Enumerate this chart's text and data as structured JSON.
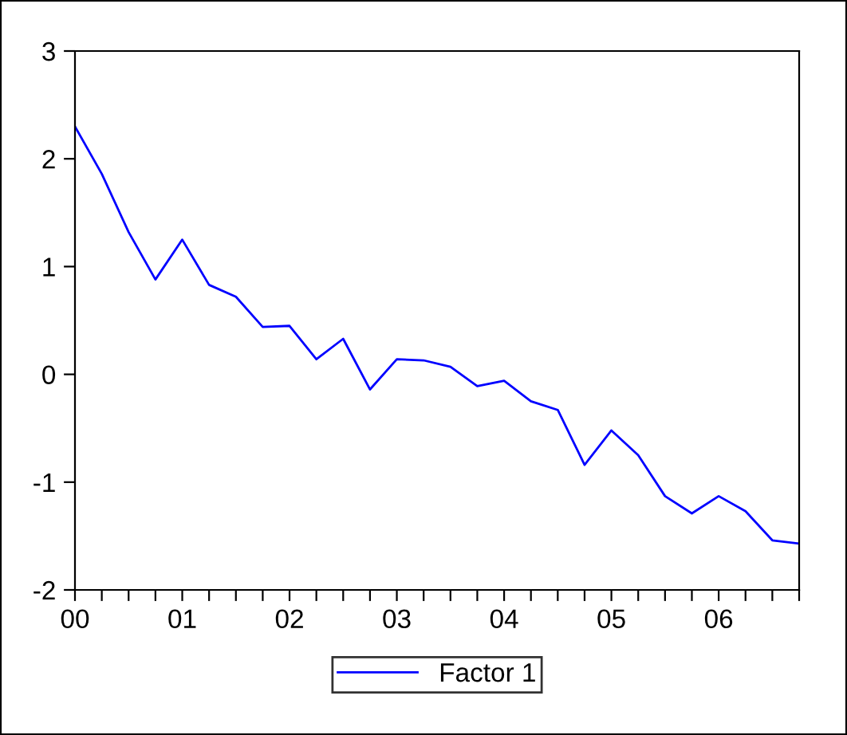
{
  "chart_data": {
    "type": "line",
    "x": [
      2000,
      2000.25,
      2000.5,
      2000.75,
      2001,
      2001.25,
      2001.5,
      2001.75,
      2002,
      2002.25,
      2002.5,
      2002.75,
      2003,
      2003.25,
      2003.5,
      2003.75,
      2004,
      2004.25,
      2004.5,
      2004.75,
      2005,
      2005.25,
      2005.5,
      2005.75,
      2006,
      2006.25,
      2006.5,
      2006.75
    ],
    "series": [
      {
        "name": "Factor 1",
        "color": "#0000ff",
        "values": [
          2.3,
          1.86,
          1.32,
          0.88,
          1.25,
          0.83,
          0.72,
          0.44,
          0.45,
          0.14,
          0.33,
          -0.14,
          0.14,
          0.13,
          0.07,
          -0.11,
          -0.06,
          -0.25,
          -0.33,
          -0.84,
          -0.52,
          -0.75,
          -1.13,
          -1.29,
          -1.13,
          -1.27,
          -1.54,
          -1.57
        ]
      }
    ],
    "xlim": [
      2000,
      2006.75
    ],
    "xticks": [
      {
        "value": 2000,
        "label": "00"
      },
      {
        "value": 2000.25,
        "label": null
      },
      {
        "value": 2000.5,
        "label": null
      },
      {
        "value": 2000.75,
        "label": null
      },
      {
        "value": 2001,
        "label": "01"
      },
      {
        "value": 2001.25,
        "label": null
      },
      {
        "value": 2001.5,
        "label": null
      },
      {
        "value": 2001.75,
        "label": null
      },
      {
        "value": 2002,
        "label": "02"
      },
      {
        "value": 2002.25,
        "label": null
      },
      {
        "value": 2002.5,
        "label": null
      },
      {
        "value": 2002.75,
        "label": null
      },
      {
        "value": 2003,
        "label": "03"
      },
      {
        "value": 2003.25,
        "label": null
      },
      {
        "value": 2003.5,
        "label": null
      },
      {
        "value": 2003.75,
        "label": null
      },
      {
        "value": 2004,
        "label": "04"
      },
      {
        "value": 2004.25,
        "label": null
      },
      {
        "value": 2004.5,
        "label": null
      },
      {
        "value": 2004.75,
        "label": null
      },
      {
        "value": 2005,
        "label": "05"
      },
      {
        "value": 2005.25,
        "label": null
      },
      {
        "value": 2005.5,
        "label": null
      },
      {
        "value": 2005.75,
        "label": null
      },
      {
        "value": 2006,
        "label": "06"
      },
      {
        "value": 2006.25,
        "label": null
      },
      {
        "value": 2006.5,
        "label": null
      },
      {
        "value": 2006.75,
        "label": null
      }
    ],
    "ylim": [
      -2,
      3
    ],
    "yticks": [
      -2,
      -1,
      0,
      1,
      2,
      3
    ],
    "grid": false,
    "legend": "bottom",
    "marker": "none",
    "line_style": "solid"
  }
}
